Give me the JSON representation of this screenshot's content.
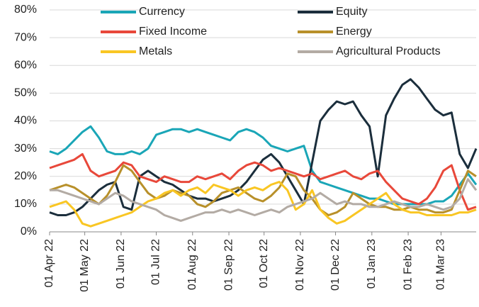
{
  "chart_data": {
    "type": "line",
    "x": [
      "2022-04-01",
      "2022-04-08",
      "2022-04-15",
      "2022-04-22",
      "2022-04-29",
      "2022-05-06",
      "2022-05-13",
      "2022-05-20",
      "2022-05-27",
      "2022-06-03",
      "2022-06-10",
      "2022-06-17",
      "2022-06-24",
      "2022-07-01",
      "2022-07-08",
      "2022-07-15",
      "2022-07-22",
      "2022-07-29",
      "2022-08-05",
      "2022-08-12",
      "2022-08-19",
      "2022-08-26",
      "2022-09-02",
      "2022-09-09",
      "2022-09-16",
      "2022-09-23",
      "2022-09-30",
      "2022-10-07",
      "2022-10-14",
      "2022-10-21",
      "2022-10-28",
      "2022-11-04",
      "2022-11-11",
      "2022-11-18",
      "2022-11-25",
      "2022-12-02",
      "2022-12-09",
      "2022-12-16",
      "2022-12-23",
      "2022-12-30",
      "2023-01-06",
      "2023-01-13",
      "2023-01-20",
      "2023-01-27",
      "2023-02-03",
      "2023-02-10",
      "2023-02-17",
      "2023-02-24",
      "2023-03-03",
      "2023-03-10",
      "2023-03-17",
      "2023-03-24",
      "2023-03-31"
    ],
    "series": [
      {
        "name": "Currency",
        "color": "#1aa6b7",
        "values": [
          29,
          28,
          30,
          33,
          36,
          38,
          34,
          29,
          28,
          28,
          29,
          28,
          30,
          35,
          36,
          37,
          37,
          36,
          37,
          36,
          35,
          34,
          33,
          36,
          37,
          36,
          34,
          31,
          30,
          29,
          30,
          31,
          22,
          18,
          17,
          16,
          15,
          14,
          13,
          12,
          12,
          11,
          10,
          10,
          10,
          10,
          10,
          11,
          11,
          13,
          17,
          21,
          17
        ]
      },
      {
        "name": "Equity",
        "color": "#1b2e3c",
        "values": [
          7,
          6,
          6,
          7,
          9,
          12,
          15,
          17,
          18,
          9,
          8,
          20,
          22,
          20,
          18,
          17,
          15,
          13,
          12,
          12,
          11,
          12,
          13,
          15,
          18,
          22,
          26,
          28,
          25,
          20,
          15,
          10,
          25,
          40,
          44,
          47,
          46,
          47,
          42,
          38,
          20,
          42,
          48,
          53,
          55,
          52,
          48,
          44,
          42,
          43,
          28,
          23,
          30
        ]
      },
      {
        "name": "Fixed Income",
        "color": "#e8483a",
        "values": [
          23,
          24,
          25,
          26,
          28,
          22,
          20,
          21,
          22,
          25,
          24,
          20,
          19,
          18,
          20,
          19,
          18,
          18,
          20,
          19,
          20,
          21,
          19,
          22,
          24,
          25,
          24,
          22,
          23,
          22,
          21,
          20,
          21,
          19,
          20,
          21,
          22,
          20,
          19,
          21,
          22,
          18,
          15,
          12,
          11,
          10,
          12,
          16,
          22,
          24,
          15,
          8,
          9
        ]
      },
      {
        "name": "Energy",
        "color": "#b8902a",
        "values": [
          15,
          16,
          17,
          16,
          14,
          12,
          10,
          13,
          18,
          24,
          22,
          18,
          14,
          12,
          13,
          15,
          14,
          13,
          10,
          9,
          11,
          14,
          15,
          16,
          14,
          12,
          11,
          13,
          16,
          21,
          20,
          15,
          12,
          8,
          6,
          7,
          9,
          14,
          12,
          10,
          9,
          9,
          8,
          8,
          9,
          8,
          8,
          7,
          7,
          8,
          15,
          22,
          20
        ]
      },
      {
        "name": "Metals",
        "color": "#f9c623",
        "values": [
          9,
          10,
          11,
          8,
          3,
          2,
          3,
          4,
          5,
          6,
          7,
          9,
          11,
          12,
          14,
          15,
          13,
          15,
          16,
          14,
          17,
          16,
          15,
          13,
          15,
          16,
          15,
          17,
          18,
          15,
          8,
          10,
          15,
          8,
          5,
          3,
          4,
          6,
          8,
          10,
          12,
          14,
          10,
          8,
          7,
          7,
          6,
          6,
          6,
          6,
          7,
          7,
          8
        ]
      },
      {
        "name": "Agricultural Products",
        "color": "#b3aba4",
        "values": [
          15,
          15,
          14,
          13,
          12,
          11,
          10,
          12,
          14,
          13,
          11,
          10,
          9,
          8,
          6,
          5,
          4,
          5,
          6,
          7,
          7,
          8,
          7,
          8,
          7,
          6,
          7,
          8,
          7,
          9,
          10,
          11,
          12,
          14,
          12,
          10,
          11,
          10,
          10,
          9,
          9,
          10,
          11,
          10,
          9,
          9,
          10,
          9,
          8,
          9,
          12,
          19,
          15
        ]
      }
    ],
    "xlim": [
      "2022-04-01",
      "2023-03-31"
    ],
    "xticks": [
      {
        "value": "2022-04-01",
        "label": "01 Apr 22"
      },
      {
        "value": "2022-05-01",
        "label": "01 May 22"
      },
      {
        "value": "2022-06-01",
        "label": "01 Jun 22"
      },
      {
        "value": "2022-07-01",
        "label": "01 Jul 22"
      },
      {
        "value": "2022-08-01",
        "label": "01 Aug 22"
      },
      {
        "value": "2022-09-01",
        "label": "01 Sep 22"
      },
      {
        "value": "2022-10-01",
        "label": "01 Oct 22"
      },
      {
        "value": "2022-11-01",
        "label": "01 Nov 22"
      },
      {
        "value": "2022-12-01",
        "label": "01 Dec 22"
      },
      {
        "value": "2023-01-01",
        "label": "01 Jan 23"
      },
      {
        "value": "2023-02-01",
        "label": "01 Feb 23"
      },
      {
        "value": "2023-03-01",
        "label": "01 Mar 23"
      }
    ],
    "ylim": [
      0,
      80
    ],
    "yticks": [
      {
        "value": 0,
        "label": "0%"
      },
      {
        "value": 10,
        "label": "10%"
      },
      {
        "value": 20,
        "label": "20%"
      },
      {
        "value": 30,
        "label": "30%"
      },
      {
        "value": 40,
        "label": "40%"
      },
      {
        "value": 50,
        "label": "50%"
      },
      {
        "value": 60,
        "label": "60%"
      },
      {
        "value": 70,
        "label": "70%"
      },
      {
        "value": 80,
        "label": "80%"
      }
    ],
    "grid": true
  }
}
